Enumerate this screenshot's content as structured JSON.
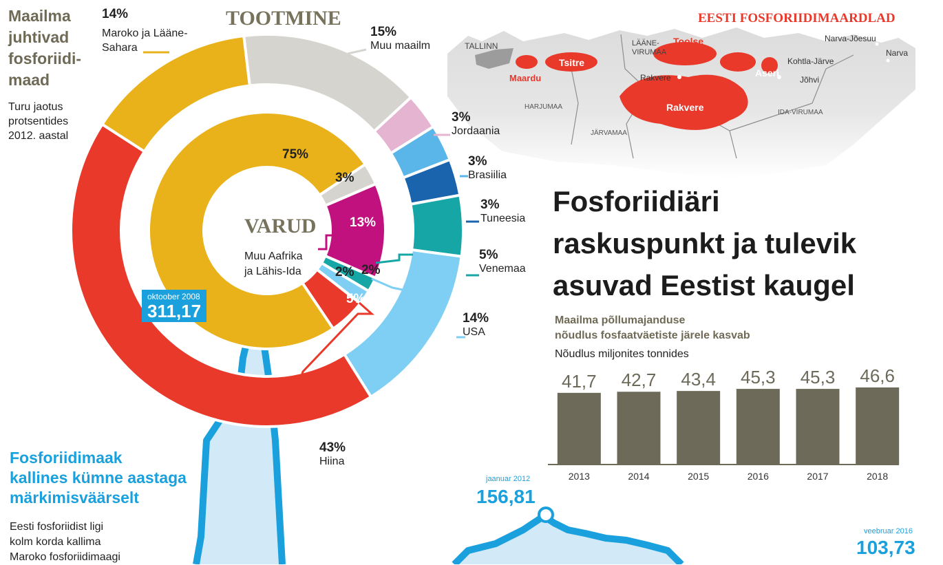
{
  "side": {
    "title_lines": [
      "Maailma",
      "juhtivad",
      "fosforiidi-",
      "maad"
    ],
    "subtitle_lines": [
      "Turu jaotus",
      "protsentides",
      "2012. aastal"
    ]
  },
  "production": {
    "title": "TOOTMINE",
    "segments": [
      {
        "pct": "43%",
        "value": 43,
        "label_lines": [
          "Hiina"
        ],
        "color": "#e8392b"
      },
      {
        "pct": "14%",
        "value": 14,
        "label_lines": [
          "Maroko ja Lääne-",
          "Sahara"
        ],
        "color": "#e9b21a"
      },
      {
        "pct": "15%",
        "value": 15,
        "label_lines": [
          "Muu maailm"
        ],
        "color": "#d5d4cf"
      },
      {
        "pct": "3%",
        "value": 3,
        "label_lines": [
          "Jordaania"
        ],
        "color": "#e4b4d0"
      },
      {
        "pct": "3%",
        "value": 3,
        "label_lines": [
          "Brasiilia"
        ],
        "color": "#5ab6e8"
      },
      {
        "pct": "3%",
        "value": 3,
        "label_lines": [
          "Tuneesia"
        ],
        "color": "#1a63ad"
      },
      {
        "pct": "5%",
        "value": 5,
        "label_lines": [
          "Venemaa"
        ],
        "color": "#17a6a6"
      },
      {
        "pct": "14%",
        "value": 14,
        "label_lines": [
          "USA"
        ],
        "color": "#7ecff3"
      }
    ]
  },
  "reserves": {
    "title": "VARUD",
    "segments": [
      {
        "pct": "75%",
        "value": 75,
        "color": "#e9b21a"
      },
      {
        "pct": "3%",
        "value": 3,
        "color": "#d5d4cf"
      },
      {
        "pct": "13%",
        "value": 13,
        "color": "#c0117f"
      },
      {
        "pct": "2%",
        "value": 2,
        "color": "#17a6a6"
      },
      {
        "pct": "2%",
        "value": 2,
        "color": "#7ecff3"
      },
      {
        "pct": "5%",
        "value": 5,
        "color": "#e8392b"
      }
    ],
    "note_lines": [
      "Muu Aafrika",
      "ja Lähis-Ida"
    ]
  },
  "map": {
    "title": "EESTI FOSFORIIDIMAARDLAD",
    "deposits": [
      "Toolse",
      "Tsitre",
      "Maardu",
      "Aseri",
      "Rakvere"
    ],
    "places": [
      "TALLINN",
      "LÄÄNE-",
      "VIRUMAA",
      "Rakvere",
      "Kohtla-Järve",
      "Jõhvi",
      "Narva-Jõesuu",
      "Narva",
      "HARJUMAA",
      "JÄRVAMAA",
      "IDA-VIRUMAA"
    ]
  },
  "main_title_lines": [
    "Fosforiidiäri",
    "raskuspunkt ja tulevik",
    "asuvad Eestist kaugel"
  ],
  "chart_data": [
    {
      "type": "bar",
      "title": "Maailma põllumajanduse nõudlus fosfaatväetiste järele kasvab",
      "title_lines": [
        "Maailma põllumajanduse",
        "nõudlus fosfaatväetiste järele kasvab"
      ],
      "subtitle": "Nõudlus miljonites tonnides",
      "categories": [
        "2013",
        "2014",
        "2015",
        "2016",
        "2017",
        "2018"
      ],
      "values": [
        41.7,
        42.7,
        43.4,
        45.3,
        45.3,
        46.6
      ],
      "value_labels": [
        "41,7",
        "42,7",
        "43,4",
        "45,3",
        "45,3",
        "46,6"
      ],
      "ylim": [
        0,
        50
      ],
      "color": "#6d6a5a"
    },
    {
      "type": "line",
      "title": "Fosforiidimaak kallines kümne aastaga märkimisväärselt",
      "title_lines": [
        "Fosforiidimaak",
        "kallines kümne aastaga",
        "märkimisväärselt"
      ],
      "subtitle_lines": [
        "Eesti fosforiidist ligi",
        "kolm korda kallima",
        "Maroko fosforiidimaagi"
      ],
      "annotations": [
        {
          "date": "oktoober 2008",
          "value": "311,17"
        },
        {
          "date": "jaanuar 2012",
          "value": "156,81"
        },
        {
          "date": "veebruar 2016",
          "value": "103,73"
        }
      ],
      "color": "#1aa0dd"
    }
  ]
}
